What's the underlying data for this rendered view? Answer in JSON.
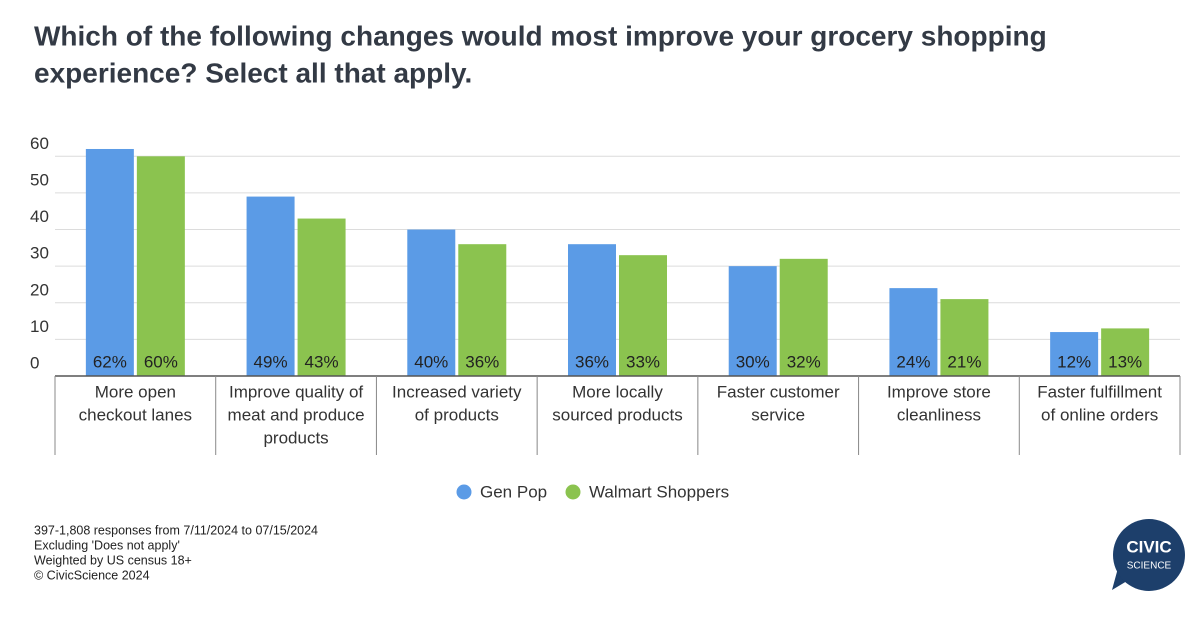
{
  "chart_data": {
    "type": "bar",
    "title": [
      "Which of the following changes would most improve your grocery shopping",
      "experience? Select all that apply."
    ],
    "categories": [
      [
        "More open",
        "checkout lanes"
      ],
      [
        "Improve quality of",
        "meat and produce",
        "products"
      ],
      [
        "Increased variety",
        "of products"
      ],
      [
        "More locally",
        "sourced products"
      ],
      [
        "Faster customer",
        "service"
      ],
      [
        "Improve store",
        "cleanliness"
      ],
      [
        "Faster fulfillment",
        "of online orders"
      ]
    ],
    "series": [
      {
        "name": "Gen Pop",
        "color": "#5b9be6",
        "values": [
          62,
          49,
          40,
          36,
          30,
          24,
          12
        ],
        "value_labels": [
          "62%",
          "49%",
          "40%",
          "36%",
          "30%",
          "24%",
          "12%"
        ]
      },
      {
        "name": "Walmart Shoppers",
        "color": "#8bc34f",
        "values": [
          60,
          43,
          36,
          33,
          32,
          21,
          13
        ],
        "value_labels": [
          "60%",
          "43%",
          "36%",
          "33%",
          "32%",
          "21%",
          "13%"
        ]
      }
    ],
    "ylim": [
      0,
      65
    ],
    "yticks": [
      0,
      10,
      20,
      30,
      40,
      50,
      60
    ],
    "grid": true,
    "notes": [
      "397-1,808 responses from 7/11/2024 to 07/15/2024",
      "Excluding 'Does not apply'",
      "Weighted by US census 18+",
      "© CivicScience 2024"
    ],
    "logo": [
      "CIVIC",
      "SCIENCE"
    ]
  }
}
